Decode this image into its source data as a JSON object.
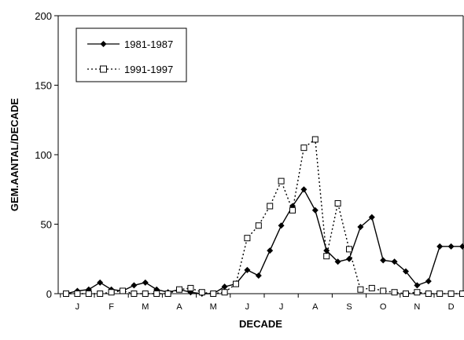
{
  "chart_data": {
    "type": "line",
    "xlabel": "DECADE",
    "ylabel": "GEM.AANTAL/DECADE",
    "ylim": [
      0,
      200
    ],
    "yticks": [
      0,
      50,
      100,
      150,
      200
    ],
    "month_labels": [
      "J",
      "F",
      "M",
      "A",
      "M",
      "J",
      "J",
      "A",
      "S",
      "O",
      "N",
      "D"
    ],
    "x": [
      1,
      2,
      3,
      4,
      5,
      6,
      7,
      8,
      9,
      10,
      11,
      12,
      13,
      14,
      15,
      16,
      17,
      18,
      19,
      20,
      21,
      22,
      23,
      24,
      25,
      26,
      27,
      28,
      29,
      30,
      31,
      32,
      33,
      34,
      35,
      36
    ],
    "grid": false,
    "legend_position": "top-left",
    "series": [
      {
        "name": "1981-1987",
        "style": "solid",
        "marker": "filled-diamond",
        "color": "#000000",
        "values": [
          0,
          2,
          3,
          8,
          3,
          2,
          6,
          8,
          3,
          1,
          3,
          1,
          0,
          0,
          5,
          7,
          17,
          13,
          31,
          49,
          63,
          75,
          60,
          31,
          23,
          25,
          48,
          55,
          24,
          23,
          16,
          6,
          9,
          34,
          34,
          34
        ]
      },
      {
        "name": "1991-1997",
        "style": "dotted",
        "marker": "open-square",
        "color": "#000000",
        "values": [
          0,
          0,
          0,
          0,
          1,
          2,
          0,
          0,
          0,
          0,
          3,
          4,
          1,
          0,
          1,
          7,
          40,
          49,
          63,
          81,
          60,
          105,
          111,
          27,
          65,
          32,
          3,
          4,
          2,
          1,
          0,
          1,
          0,
          0,
          0,
          0
        ]
      }
    ]
  }
}
